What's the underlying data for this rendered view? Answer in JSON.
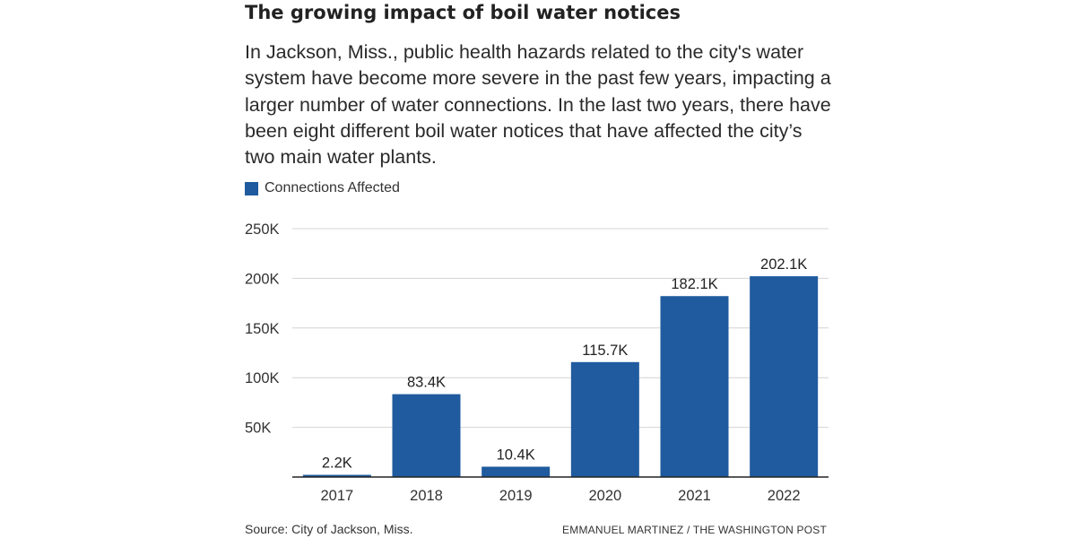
{
  "header": {
    "title": "The growing impact of boil water notices",
    "subtitle": "In Jackson, Miss., public health hazards related to the city's water system have become more severe in the past few years, impacting a larger number of water connections. In the last two years, there have been eight different boil water notices that have affected the city’s two main water plants."
  },
  "footer": {
    "source": "Source: City of Jackson, Miss.",
    "credit": "EMMANUEL MARTINEZ / THE WASHINGTON POST"
  },
  "chart_data": {
    "type": "bar",
    "title": "The growing impact of boil water notices",
    "xlabel": "",
    "ylabel": "",
    "categories": [
      "2017",
      "2018",
      "2019",
      "2020",
      "2021",
      "2022"
    ],
    "series": [
      {
        "name": "Connections Affected",
        "values": [
          2200,
          83400,
          10400,
          115700,
          182100,
          202100
        ],
        "labels": [
          "2.2K",
          "83.4K",
          "10.4K",
          "115.7K",
          "182.1K",
          "202.1K"
        ],
        "color": "#1f5b9e"
      }
    ],
    "ylim": [
      0,
      250000
    ],
    "yticks": [
      50000,
      100000,
      150000,
      200000,
      250000
    ],
    "ytick_labels": [
      "50K",
      "100K",
      "150K",
      "200K",
      "250K"
    ],
    "grid": true,
    "legend": "top-left",
    "colors": {
      "bar": "#1f5b9e",
      "grid": "#d4d4d4",
      "baseline": "#222222"
    }
  }
}
